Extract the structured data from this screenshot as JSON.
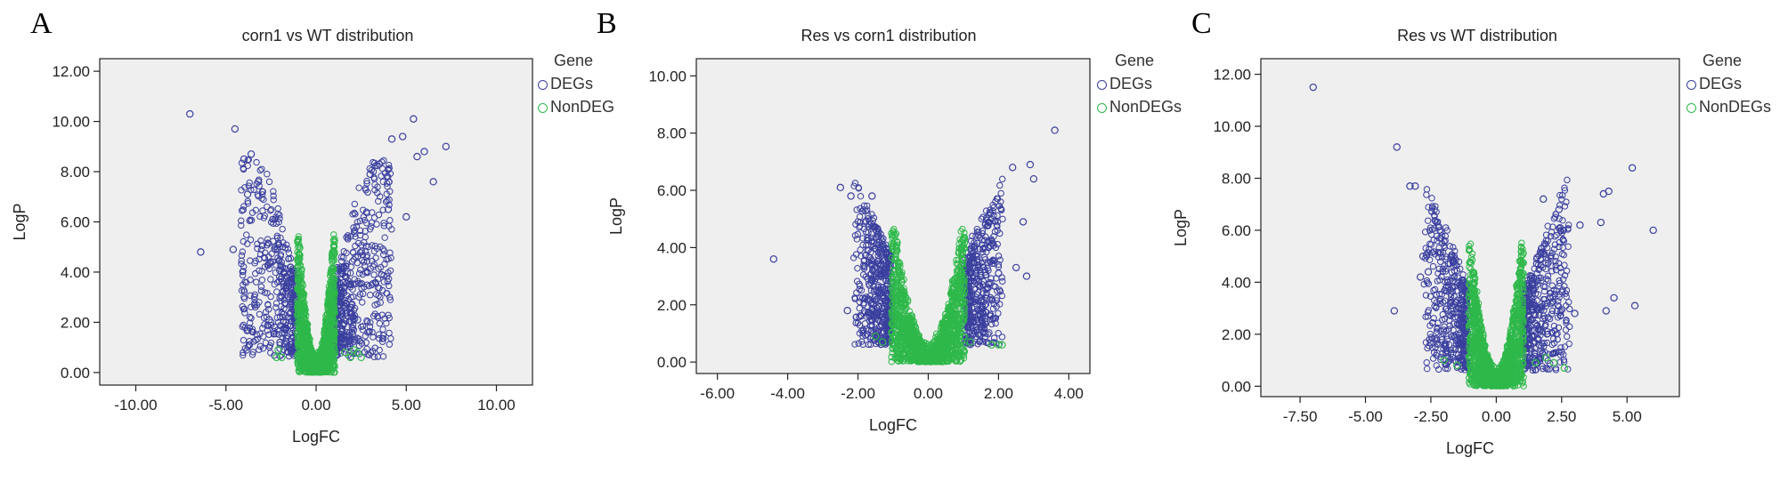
{
  "colors": {
    "degs": "#3a3f9e",
    "nondeg": "#2eb84a",
    "plot_bg": "#efefef"
  },
  "chart_data": [
    {
      "panel": "A",
      "type": "scatter",
      "title": "corn1 vs WT distribution",
      "xlabel": "LogFC",
      "ylabel": "LogP",
      "xlim": [
        -12,
        12
      ],
      "ylim": [
        -0.5,
        12.5
      ],
      "xticks": [
        -10,
        -5,
        0,
        5,
        10
      ],
      "xtick_labels": [
        "-10.00",
        "-5.00",
        "0.00",
        "5.00",
        "10.00"
      ],
      "yticks": [
        0,
        2,
        4,
        6,
        8,
        10,
        12
      ],
      "ytick_labels": [
        "0.00",
        "2.00",
        "4.00",
        "6.00",
        "8.00",
        "10.00",
        "12.00"
      ],
      "grid": false,
      "legend": {
        "position": "top-right",
        "title": "Gene",
        "entries": [
          "DEGs",
          "NonDEG"
        ]
      },
      "threshold": 1.0,
      "series": [
        {
          "name": "DEGs",
          "points": [
            [
              -7.0,
              10.3
            ],
            [
              -6.4,
              4.8
            ],
            [
              -4.5,
              9.7
            ],
            [
              -4.6,
              4.9
            ],
            [
              -4.0,
              8.5
            ],
            [
              -3.8,
              7.1
            ],
            [
              -3.6,
              8.7
            ],
            [
              -3.2,
              7.6
            ],
            [
              -2.6,
              2.1
            ],
            [
              -2.3,
              1.8
            ],
            [
              -2.0,
              1.2
            ],
            [
              1.8,
              1.0
            ],
            [
              2.3,
              2.1
            ],
            [
              3.5,
              8.3
            ],
            [
              4.2,
              9.3
            ],
            [
              4.8,
              9.4
            ],
            [
              5.4,
              10.1
            ],
            [
              5.6,
              8.6
            ],
            [
              6.0,
              8.8
            ],
            [
              6.5,
              7.6
            ],
            [
              7.2,
              9.0
            ],
            [
              3.0,
              7.9
            ],
            [
              4.0,
              6.5
            ],
            [
              5.0,
              6.2
            ]
          ]
        },
        {
          "name": "NonDEG",
          "points": [
            [
              -2.2,
              0.6
            ],
            [
              -2.1,
              0.9
            ],
            [
              -1.9,
              0.6
            ],
            [
              1.6,
              0.8
            ],
            [
              1.9,
              0.6
            ],
            [
              2.1,
              0.9
            ],
            [
              2.3,
              0.8
            ],
            [
              2.5,
              0.6
            ]
          ]
        }
      ]
    },
    {
      "panel": "B",
      "type": "scatter",
      "title": "Res vs corn1 distribution",
      "xlabel": "LogFC",
      "ylabel": "LogP",
      "xlim": [
        -6.6,
        4.6
      ],
      "ylim": [
        -0.4,
        10.6
      ],
      "xticks": [
        -6,
        -4,
        -2,
        0,
        2,
        4
      ],
      "xtick_labels": [
        "-6.00",
        "-4.00",
        "-2.00",
        "0.00",
        "2.00",
        "4.00"
      ],
      "yticks": [
        0,
        2,
        4,
        6,
        8,
        10
      ],
      "ytick_labels": [
        "0.00",
        "2.00",
        "4.00",
        "6.00",
        "8.00",
        "10.00"
      ],
      "grid": false,
      "legend": {
        "position": "top-right",
        "title": "Gene",
        "entries": [
          "DEGs",
          "NonDEGs"
        ]
      },
      "threshold": 1.0,
      "series": [
        {
          "name": "DEGs",
          "points": [
            [
              -4.4,
              3.6
            ],
            [
              -2.5,
              6.1
            ],
            [
              -2.2,
              5.8
            ],
            [
              -2.3,
              1.8
            ],
            [
              -1.6,
              5.8
            ],
            [
              2.4,
              6.8
            ],
            [
              2.9,
              6.9
            ],
            [
              3.0,
              6.4
            ],
            [
              3.6,
              8.1
            ],
            [
              2.7,
              4.9
            ],
            [
              2.8,
              3.0
            ],
            [
              2.5,
              3.3
            ],
            [
              2.0,
              3.1
            ]
          ]
        },
        {
          "name": "NonDEGs",
          "points": [
            [
              -1.5,
              0.9
            ],
            [
              -1.3,
              0.7
            ],
            [
              1.2,
              0.7
            ],
            [
              1.8,
              0.6
            ],
            [
              2.0,
              0.6
            ],
            [
              2.1,
              0.6
            ]
          ]
        }
      ]
    },
    {
      "panel": "C",
      "type": "scatter",
      "title": "Res vs WT distribution",
      "xlabel": "LogFC",
      "ylabel": "LogP",
      "xlim": [
        -9,
        7
      ],
      "ylim": [
        -0.4,
        12.6
      ],
      "xticks": [
        -7.5,
        -5,
        -2.5,
        0,
        2.5,
        5
      ],
      "xtick_labels": [
        "-7.50",
        "-5.00",
        "-2.50",
        "0.00",
        "2.50",
        "5.00"
      ],
      "yticks": [
        0,
        2,
        4,
        6,
        8,
        10,
        12
      ],
      "ytick_labels": [
        "0.00",
        "2.00",
        "4.00",
        "6.00",
        "8.00",
        "10.00",
        "12.00"
      ],
      "grid": false,
      "legend": {
        "position": "top-right",
        "title": "Gene",
        "entries": [
          "DEGs",
          "NonDEGs"
        ]
      },
      "threshold": 1.0,
      "series": [
        {
          "name": "DEGs",
          "points": [
            [
              -7.0,
              11.5
            ],
            [
              -3.8,
              9.2
            ],
            [
              -3.3,
              7.7
            ],
            [
              -3.1,
              7.7
            ],
            [
              -3.9,
              2.9
            ],
            [
              -2.9,
              4.2
            ],
            [
              -2.8,
              5.0
            ],
            [
              -2.6,
              4.4
            ],
            [
              1.8,
              7.2
            ],
            [
              2.4,
              6.8
            ],
            [
              3.2,
              6.2
            ],
            [
              4.0,
              6.3
            ],
            [
              4.1,
              7.4
            ],
            [
              4.3,
              7.5
            ],
            [
              5.2,
              8.4
            ],
            [
              6.0,
              6.0
            ],
            [
              5.3,
              3.1
            ],
            [
              4.5,
              3.4
            ],
            [
              4.2,
              2.9
            ],
            [
              3.0,
              2.8
            ]
          ]
        },
        {
          "name": "NonDEGs",
          "points": [
            [
              -2.0,
              1.0
            ],
            [
              -1.5,
              0.8
            ],
            [
              1.5,
              0.9
            ],
            [
              1.9,
              1.1
            ],
            [
              2.2,
              0.9
            ],
            [
              2.6,
              0.7
            ]
          ]
        }
      ]
    }
  ]
}
